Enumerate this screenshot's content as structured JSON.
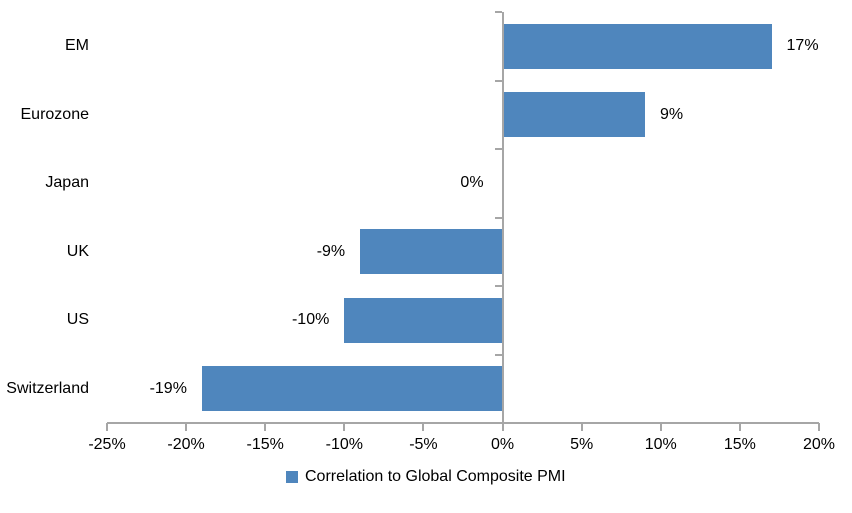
{
  "chart_data": {
    "type": "bar",
    "orientation": "horizontal",
    "title": "",
    "categories": [
      "EM",
      "Eurozone",
      "Japan",
      "UK",
      "US",
      "Switzerland"
    ],
    "values": [
      17,
      9,
      0,
      -9,
      -10,
      -19
    ],
    "value_labels": [
      "17%",
      "9%",
      "0%",
      "-9%",
      "-10%",
      "-19%"
    ],
    "series_name": "Correlation to Global Composite PMI",
    "xlim": [
      -25,
      20
    ],
    "x_tick_values": [
      -25,
      -20,
      -15,
      -10,
      -5,
      0,
      5,
      10,
      15,
      20
    ],
    "x_tick_labels": [
      "-25%",
      "-20%",
      "-15%",
      "-10%",
      "-5%",
      "0%",
      "5%",
      "10%",
      "15%",
      "20%"
    ],
    "grid": false,
    "legend_position": "bottom-center",
    "legend": {
      "label": "Correlation to Global Composite PMI"
    },
    "colors": {
      "bar": "#4f86bd",
      "axis": "#a6a6a6",
      "text": "#000000",
      "background": "#ffffff"
    }
  }
}
